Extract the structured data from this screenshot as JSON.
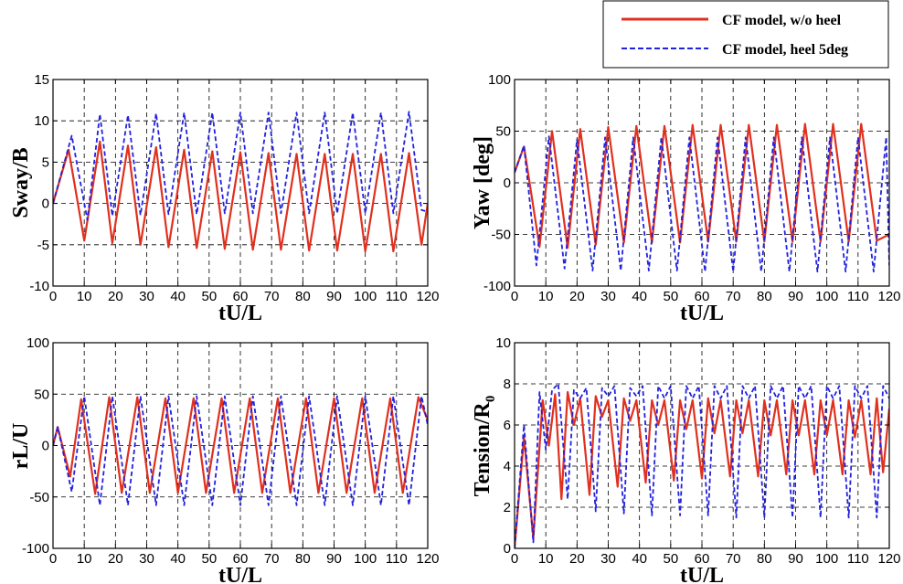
{
  "legend": {
    "entries": [
      {
        "label": "CF model, w/o heel",
        "color": "#e0301e",
        "dash": "solid"
      },
      {
        "label": "CF model, heel 5deg",
        "color": "#2222dd",
        "dash": "dashed"
      }
    ]
  },
  "chart_data": [
    {
      "id": "sway",
      "type": "line",
      "ylabel": "Sway/B",
      "xlabel": "tU/L",
      "xlim": [
        0,
        120
      ],
      "ylim": [
        -10,
        15
      ],
      "xticks": [
        0,
        10,
        20,
        30,
        40,
        50,
        60,
        70,
        80,
        90,
        100,
        110,
        120
      ],
      "yticks": [
        -10,
        -5,
        0,
        5,
        10,
        15
      ],
      "series": [
        {
          "name": "CF model, w/o heel",
          "color": "#e0301e",
          "dash": "solid",
          "x": [
            0,
            5,
            10,
            15,
            19,
            24,
            28,
            33,
            37,
            42,
            46,
            51,
            55,
            60,
            64,
            69,
            73,
            78,
            82,
            87,
            91,
            96,
            100,
            105,
            109,
            114,
            118,
            120
          ],
          "y": [
            0,
            6.5,
            -4.5,
            7.5,
            -4.8,
            7.0,
            -5.0,
            6.8,
            -5.3,
            6.5,
            -5.4,
            6.3,
            -5.5,
            6.2,
            -5.6,
            6.1,
            -5.6,
            6.0,
            -5.7,
            6.0,
            -5.7,
            6.0,
            -5.8,
            6.0,
            -5.8,
            6.1,
            -5.0,
            0
          ]
        },
        {
          "name": "CF model, heel 5deg",
          "color": "#2222dd",
          "dash": "dashed",
          "x": [
            0,
            6,
            11,
            15,
            19,
            24,
            28,
            33,
            37,
            42,
            46,
            51,
            55,
            60,
            64,
            69,
            73,
            78,
            82,
            87,
            91,
            96,
            100,
            105,
            109,
            114,
            118,
            120
          ],
          "y": [
            0,
            8.2,
            -2.0,
            10.8,
            -1.5,
            10.7,
            -1.4,
            10.9,
            -1.3,
            11.0,
            -1.3,
            11.0,
            -1.2,
            11.0,
            -1.2,
            11.0,
            -1.2,
            11.0,
            -1.2,
            11.0,
            -1.2,
            11.0,
            -1.2,
            11.0,
            -1.2,
            11.1,
            -0.8,
            -1.0
          ]
        }
      ]
    },
    {
      "id": "yaw",
      "type": "line",
      "ylabel": "Yaw [deg]",
      "xlabel": "tU/L",
      "xlim": [
        0,
        120
      ],
      "ylim": [
        -100,
        100
      ],
      "xticks": [
        0,
        10,
        20,
        30,
        40,
        50,
        60,
        70,
        80,
        90,
        100,
        110,
        120
      ],
      "yticks": [
        -100,
        -50,
        0,
        50,
        100
      ],
      "series": [
        {
          "name": "CF model, w/o heel",
          "color": "#e0301e",
          "dash": "solid",
          "x": [
            0,
            3,
            8,
            12,
            17,
            21,
            26,
            30,
            35,
            39,
            44,
            48,
            53,
            57,
            62,
            66,
            71,
            75,
            80,
            84,
            89,
            93,
            98,
            102,
            107,
            111,
            116,
            120
          ],
          "y": [
            10,
            35,
            -62,
            50,
            -63,
            52,
            -60,
            54,
            -58,
            55,
            -58,
            55,
            -58,
            56,
            -57,
            56,
            -57,
            56,
            -57,
            56,
            -57,
            57,
            -57,
            57,
            -57,
            57,
            -56,
            -50
          ]
        },
        {
          "name": "CF model, heel 5deg",
          "color": "#2222dd",
          "dash": "dashed",
          "x": [
            0,
            3,
            7,
            11,
            16,
            20,
            25,
            29,
            34,
            38,
            43,
            47,
            52,
            56,
            61,
            65,
            70,
            74,
            79,
            83,
            88,
            92,
            97,
            101,
            106,
            110,
            115,
            119,
            120
          ],
          "y": [
            10,
            36,
            -80,
            45,
            -83,
            42,
            -85,
            44,
            -85,
            44,
            -85,
            44,
            -85,
            44,
            -86,
            44,
            -86,
            44,
            -86,
            44,
            -86,
            44,
            -86,
            44,
            -86,
            44,
            -86,
            44,
            -80
          ]
        }
      ]
    },
    {
      "id": "rlu",
      "type": "line",
      "ylabel": "rL/U",
      "xlabel": "tU/L",
      "xlim": [
        0,
        120
      ],
      "ylim": [
        -100,
        100
      ],
      "xticks": [
        0,
        10,
        20,
        30,
        40,
        50,
        60,
        70,
        80,
        90,
        100,
        110,
        120
      ],
      "yticks": [
        -100,
        -50,
        0,
        50,
        100
      ],
      "series": [
        {
          "name": "CF model, w/o heel",
          "color": "#e0301e",
          "dash": "solid",
          "x": [
            0,
            1.5,
            5.5,
            9,
            13.5,
            18,
            22,
            27,
            31,
            36,
            40,
            45,
            49,
            54,
            58,
            63,
            67,
            72,
            76,
            81,
            85,
            90,
            94,
            99,
            103,
            108,
            112,
            117,
            120
          ],
          "y": [
            0,
            18,
            -30,
            45,
            -47,
            47,
            -46,
            47,
            -46,
            46,
            -46,
            46,
            -46,
            46,
            -46,
            46,
            -46,
            46,
            -46,
            46,
            -46,
            46,
            -46,
            46,
            -46,
            46,
            -46,
            47,
            25
          ]
        },
        {
          "name": "CF model, heel 5deg",
          "color": "#2222dd",
          "dash": "dashed",
          "x": [
            0,
            1.5,
            6,
            10,
            15,
            19,
            24,
            28,
            33,
            37,
            42,
            46,
            51,
            55,
            60,
            64,
            69,
            73,
            78,
            82,
            87,
            91,
            96,
            100,
            105,
            109,
            114,
            118,
            120
          ],
          "y": [
            0,
            18,
            -45,
            48,
            -58,
            48,
            -58,
            48,
            -58,
            48,
            -58,
            48,
            -58,
            48,
            -58,
            48,
            -58,
            48,
            -58,
            48,
            -58,
            48,
            -58,
            48,
            -58,
            48,
            -58,
            48,
            20
          ]
        }
      ]
    },
    {
      "id": "tension",
      "type": "line",
      "ylabel": "Tension/R0",
      "ylabel_sub": "0",
      "xlabel": "tU/L",
      "xlim": [
        0,
        120
      ],
      "ylim": [
        0,
        10
      ],
      "xticks": [
        0,
        10,
        20,
        30,
        40,
        50,
        60,
        70,
        80,
        90,
        100,
        110,
        120
      ],
      "yticks": [
        0,
        2,
        4,
        6,
        8,
        10
      ],
      "series": [
        {
          "name": "CF model, w/o heel",
          "color": "#e0301e",
          "dash": "solid",
          "x": [
            0,
            3,
            6,
            9,
            11,
            13,
            15,
            17,
            19,
            21,
            24,
            26,
            28,
            30,
            33,
            35,
            37,
            39,
            42,
            44,
            46,
            48,
            51,
            53,
            55,
            57,
            60,
            62,
            64,
            66,
            69,
            71,
            73,
            75,
            78,
            80,
            82,
            84,
            87,
            89,
            91,
            93,
            96,
            98,
            100,
            102,
            105,
            107,
            109,
            111,
            114,
            116,
            118,
            120
          ],
          "y": [
            0,
            5.4,
            0.5,
            7.2,
            5.0,
            7.5,
            2.4,
            7.6,
            6.0,
            7.3,
            2.6,
            7.4,
            6.4,
            7.2,
            3.0,
            7.3,
            6.2,
            7.2,
            3.2,
            7.2,
            6.0,
            7.2,
            3.3,
            7.2,
            5.8,
            7.2,
            3.4,
            7.3,
            5.6,
            7.2,
            3.5,
            7.2,
            5.6,
            7.2,
            3.5,
            7.2,
            5.5,
            7.2,
            3.6,
            7.2,
            5.5,
            7.2,
            3.6,
            7.2,
            5.5,
            7.2,
            3.6,
            7.2,
            5.4,
            7.2,
            3.6,
            7.3,
            3.7,
            6.8
          ]
        },
        {
          "name": "CF model, heel 5deg",
          "color": "#2222dd",
          "dash": "dashed",
          "x": [
            0,
            3,
            6,
            8,
            10,
            12,
            14,
            17,
            19,
            21,
            23,
            26,
            28,
            30,
            32,
            35,
            37,
            39,
            41,
            44,
            46,
            48,
            50,
            53,
            55,
            57,
            59,
            62,
            64,
            66,
            68,
            71,
            73,
            75,
            77,
            80,
            82,
            84,
            86,
            89,
            91,
            93,
            95,
            98,
            100,
            102,
            104,
            107,
            109,
            111,
            113,
            116,
            118,
            120
          ],
          "y": [
            0,
            6.0,
            0.3,
            7.6,
            4.8,
            7.7,
            8.0,
            2.4,
            7.7,
            7.3,
            7.8,
            1.8,
            7.8,
            7.4,
            7.9,
            1.7,
            7.8,
            7.4,
            7.9,
            1.6,
            7.9,
            7.3,
            7.9,
            1.6,
            7.9,
            7.3,
            7.9,
            1.6,
            7.9,
            7.3,
            7.9,
            1.5,
            7.9,
            7.3,
            7.9,
            1.5,
            7.9,
            7.3,
            7.9,
            1.5,
            7.9,
            7.3,
            7.9,
            1.5,
            7.9,
            7.3,
            7.9,
            1.5,
            7.9,
            7.3,
            7.9,
            1.5,
            7.9,
            7.3
          ]
        }
      ]
    }
  ]
}
